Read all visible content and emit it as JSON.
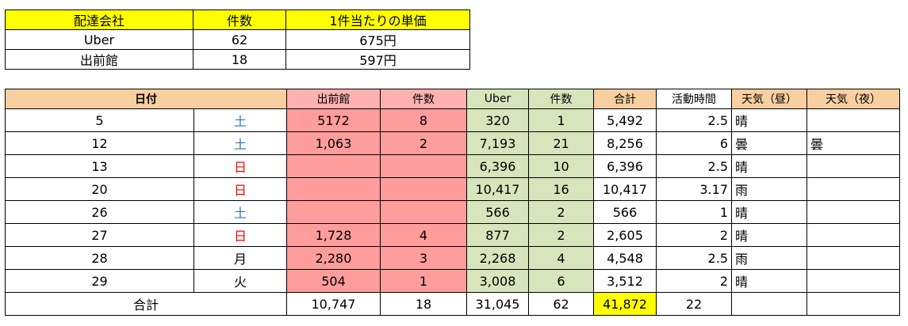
{
  "summary": {
    "headers": [
      "配達会社",
      "件数",
      "1件当たりの単価"
    ],
    "rows": [
      {
        "company": "Uber",
        "count": "62",
        "unit_price": "675円"
      },
      {
        "company": "出前館",
        "count": "18",
        "unit_price": "597円"
      }
    ]
  },
  "log": {
    "headers": {
      "date": "日付",
      "demae": "出前館",
      "demae_count": "件数",
      "uber": "Uber",
      "uber_count": "件数",
      "total": "合計",
      "hours": "活動時間",
      "weather_day": "天気（昼）",
      "weather_night": "天気（夜）"
    },
    "rows": [
      {
        "day": "5",
        "dow": "土",
        "demae": "5172",
        "demae_count": "8",
        "uber": "320",
        "uber_count": "1",
        "total": "5,492",
        "hours": "2.5",
        "weather_day": "晴",
        "weather_night": ""
      },
      {
        "day": "12",
        "dow": "土",
        "demae": "1,063",
        "demae_count": "2",
        "uber": "7,193",
        "uber_count": "21",
        "total": "8,256",
        "hours": "6",
        "weather_day": "曇",
        "weather_night": "曇"
      },
      {
        "day": "13",
        "dow": "日",
        "demae": "",
        "demae_count": "",
        "uber": "6,396",
        "uber_count": "10",
        "total": "6,396",
        "hours": "2.5",
        "weather_day": "晴",
        "weather_night": ""
      },
      {
        "day": "20",
        "dow": "日",
        "demae": "",
        "demae_count": "",
        "uber": "10,417",
        "uber_count": "16",
        "total": "10,417",
        "hours": "3.17",
        "weather_day": "雨",
        "weather_night": ""
      },
      {
        "day": "26",
        "dow": "土",
        "demae": "",
        "demae_count": "",
        "uber": "566",
        "uber_count": "2",
        "total": "566",
        "hours": "1",
        "weather_day": "晴",
        "weather_night": ""
      },
      {
        "day": "27",
        "dow": "日",
        "demae": "1,728",
        "demae_count": "4",
        "uber": "877",
        "uber_count": "2",
        "total": "2,605",
        "hours": "2",
        "weather_day": "晴",
        "weather_night": ""
      },
      {
        "day": "28",
        "dow": "月",
        "demae": "2,280",
        "demae_count": "3",
        "uber": "2,268",
        "uber_count": "4",
        "total": "4,548",
        "hours": "2.5",
        "weather_day": "雨",
        "weather_night": ""
      },
      {
        "day": "29",
        "dow": "火",
        "demae": "504",
        "demae_count": "1",
        "uber": "3,008",
        "uber_count": "6",
        "total": "3,512",
        "hours": "2",
        "weather_day": "晴",
        "weather_night": ""
      }
    ],
    "totals": {
      "label": "合計",
      "demae": "10,747",
      "demae_count": "18",
      "uber": "31,045",
      "uber_count": "62",
      "total": "41,872",
      "hours": "22"
    },
    "colors": {
      "header_orange": "#f8cfa0",
      "demae_pink": "#ff9c9c",
      "uber_green": "#d8e4bc",
      "highlight_yellow": "#ffff00",
      "saturday_blue": "#2f74c6",
      "sunday_red": "#ff0000"
    }
  }
}
